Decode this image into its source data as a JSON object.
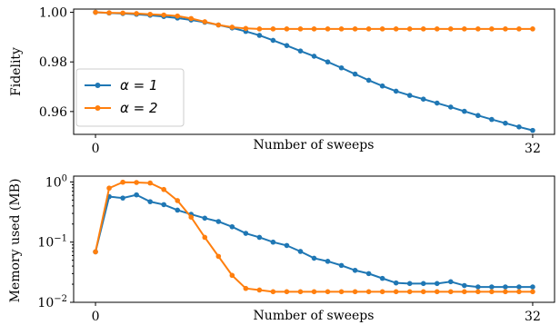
{
  "chart_data": [
    {
      "type": "line",
      "title": "",
      "xlabel": "Number of sweeps",
      "ylabel": "Fidelity",
      "x_ticks": [
        0,
        32
      ],
      "y_ticks": [
        "0.96",
        "0.98",
        "1.00"
      ],
      "xlim": [
        -1.6,
        33.6
      ],
      "ylim": [
        0.9508,
        1.0013
      ],
      "legend": "center-left",
      "x": [
        0,
        1,
        2,
        3,
        4,
        5,
        6,
        7,
        8,
        9,
        10,
        11,
        12,
        13,
        14,
        15,
        16,
        17,
        18,
        19,
        20,
        21,
        22,
        23,
        24,
        25,
        26,
        27,
        28,
        29,
        30,
        31,
        32
      ],
      "series": [
        {
          "name": "α = 1",
          "color": "#1f77b4",
          "values": [
            1.0,
            0.9997,
            0.9995,
            0.9992,
            0.9988,
            0.9983,
            0.9977,
            0.9969,
            0.996,
            0.9949,
            0.9937,
            0.9923,
            0.9907,
            0.9887,
            0.9866,
            0.9844,
            0.9823,
            0.98,
            0.9776,
            0.9751,
            0.9726,
            0.9703,
            0.9682,
            0.9665,
            0.965,
            0.9634,
            0.9618,
            0.9601,
            0.9584,
            0.9568,
            0.9553,
            0.9538,
            0.9524
          ]
        },
        {
          "name": "α = 2",
          "color": "#ff7f0e",
          "values": [
            1.0,
            0.9998,
            0.9997,
            0.9995,
            0.9992,
            0.9989,
            0.9985,
            0.9975,
            0.9962,
            0.9949,
            0.994,
            0.9935,
            0.9933,
            0.9933,
            0.9933,
            0.9933,
            0.9933,
            0.9933,
            0.9933,
            0.9933,
            0.9933,
            0.9933,
            0.9933,
            0.9933,
            0.9933,
            0.9933,
            0.9933,
            0.9933,
            0.9933,
            0.9933,
            0.9933,
            0.9933,
            0.9933
          ]
        }
      ]
    },
    {
      "type": "line",
      "title": "",
      "xlabel": "Number of sweeps",
      "ylabel": "Memory used (MB)",
      "yscale": "log",
      "x_ticks": [
        0,
        32
      ],
      "y_ticks": [
        0.01,
        0.1,
        1
      ],
      "y_tick_labels": [
        [
          "10",
          "−2"
        ],
        [
          "10",
          "−1"
        ],
        [
          "10",
          "0"
        ]
      ],
      "xlim": [
        -1.6,
        33.6
      ],
      "ylim": [
        0.01,
        1.25
      ],
      "legend": "none",
      "x": [
        0,
        1,
        2,
        3,
        4,
        5,
        6,
        7,
        8,
        9,
        10,
        11,
        12,
        13,
        14,
        15,
        16,
        17,
        18,
        19,
        20,
        21,
        22,
        23,
        24,
        25,
        26,
        27,
        28,
        29,
        30,
        31,
        32
      ],
      "series": [
        {
          "name": "α = 1",
          "color": "#1f77b4",
          "values": [
            0.069,
            0.57,
            0.54,
            0.61,
            0.47,
            0.42,
            0.34,
            0.29,
            0.25,
            0.22,
            0.18,
            0.14,
            0.12,
            0.1,
            0.088,
            0.07,
            0.054,
            0.048,
            0.041,
            0.034,
            0.03,
            0.025,
            0.021,
            0.0205,
            0.0205,
            0.0205,
            0.022,
            0.019,
            0.018,
            0.018,
            0.018,
            0.018,
            0.018
          ]
        },
        {
          "name": "α = 2",
          "color": "#ff7f0e",
          "values": [
            0.069,
            0.79,
            0.99,
            0.98,
            0.96,
            0.75,
            0.49,
            0.26,
            0.12,
            0.058,
            0.028,
            0.017,
            0.016,
            0.015,
            0.015,
            0.015,
            0.015,
            0.015,
            0.015,
            0.015,
            0.015,
            0.015,
            0.015,
            0.015,
            0.015,
            0.015,
            0.015,
            0.015,
            0.015,
            0.015,
            0.015,
            0.015,
            0.015
          ]
        }
      ]
    }
  ]
}
